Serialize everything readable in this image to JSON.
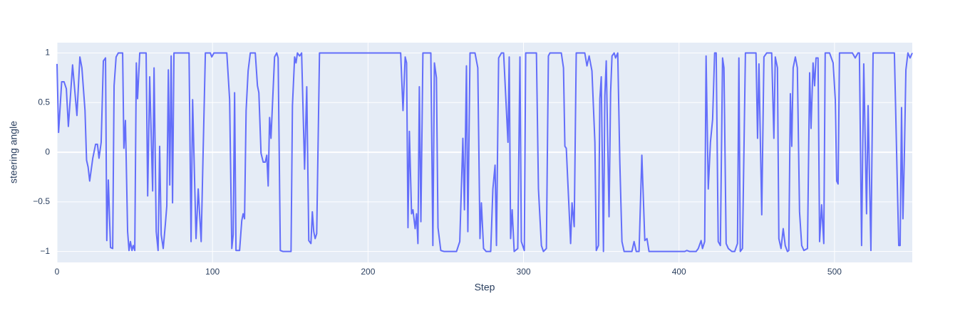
{
  "chart_data": {
    "type": "line",
    "x_label": "Step",
    "y_label": "steering angle",
    "xlim": [
      0,
      550
    ],
    "ylim": [
      -1.11,
      1.104
    ],
    "xticks": [
      0,
      100,
      200,
      300,
      400,
      500
    ],
    "yticks": [
      {
        "value": -1,
        "label": "−1"
      },
      {
        "value": -0.5,
        "label": "−0.5"
      },
      0,
      0.5,
      1
    ],
    "grid": true,
    "background": "#e5ecf6",
    "x": [
      0,
      1,
      3,
      4.5,
      6,
      7.3,
      10,
      12.8,
      14.7,
      16,
      18,
      19,
      20,
      21,
      23,
      24.8,
      26,
      27,
      28.4,
      29.8,
      31.2,
      32,
      33,
      34.4,
      35.8,
      36.7,
      38,
      39.4,
      42.2,
      43,
      44,
      45.4,
      46.3,
      47.2,
      48.2,
      49,
      50,
      51,
      51.8,
      53.2,
      57.3,
      58.3,
      59.6,
      61.5,
      62.4,
      63.8,
      65,
      66,
      67,
      68.3,
      69.7,
      70.6,
      71.6,
      72.5,
      73.4,
      74.3,
      75.2,
      84.9,
      86.2,
      87.2,
      89.4,
      90.8,
      92.7,
      94,
      95.4,
      98.6,
      99.5,
      100.9,
      109.2,
      111,
      112.4,
      113.3,
      114.2,
      115.1,
      117.4,
      118.8,
      119.7,
      120.6,
      121.6,
      122.9,
      124.3,
      127.5,
      128.9,
      129.8,
      131.2,
      132.6,
      133.9,
      134.9,
      135.8,
      136.7,
      137.6,
      139.9,
      141.3,
      142.2,
      143.6,
      145.4,
      150.5,
      151.4,
      152.8,
      153.7,
      154.6,
      156,
      157.3,
      159.2,
      160.6,
      161.9,
      163.3,
      164.2,
      165.1,
      166,
      167,
      168.8,
      221,
      222.5,
      223.9,
      224.8,
      225.7,
      226.6,
      228,
      228.9,
      230.3,
      231.2,
      232.1,
      233,
      234,
      235.3,
      240.4,
      241.7,
      242.7,
      244,
      245,
      246.8,
      249,
      256.9,
      259,
      261,
      262,
      263.3,
      264.2,
      265.6,
      268.8,
      270.6,
      272,
      272.9,
      274.3,
      276,
      278.9,
      280.3,
      281.7,
      282.6,
      284,
      285.8,
      287.2,
      290,
      290.8,
      291.7,
      292.7,
      294,
      296.3,
      297.7,
      298.6,
      300.5,
      301.4,
      308.3,
      309.6,
      311.5,
      312.8,
      314.7,
      316,
      317,
      318.8,
      324.3,
      325.7,
      326.6,
      327.5,
      330.3,
      331.2,
      332.6,
      333.9,
      339.4,
      340.8,
      342.2,
      344,
      345.9,
      346.8,
      348.2,
      349.1,
      350,
      351.4,
      352.3,
      353.2,
      355,
      356,
      356.9,
      358.3,
      359.2,
      360.6,
      361.9,
      363.3,
      364.7,
      369.7,
      371.1,
      372.5,
      374.3,
      376.1,
      378,
      379.4,
      380.7,
      403.7,
      405,
      406.9,
      411,
      412.4,
      414.2,
      415.1,
      416.5,
      417.4,
      418.8,
      420.2,
      421.6,
      422.9,
      423.9,
      425.2,
      426.6,
      428,
      428.9,
      430.3,
      431.7,
      434,
      435.8,
      437.6,
      438.5,
      439.4,
      440.8,
      442.7,
      449.5,
      450.5,
      451.4,
      453.2,
      454.6,
      456.4,
      459.6,
      461,
      461.9,
      463.3,
      464.2,
      465.6,
      467,
      468.3,
      469.7,
      470.6,
      471.6,
      472.5,
      473.4,
      474.8,
      476.1,
      477.5,
      478.9,
      480.3,
      482.6,
      484,
      484.9,
      486.2,
      487.2,
      488.1,
      489.4,
      490.4,
      491.7,
      493.1,
      494,
      496.8,
      499.1,
      500.5,
      501.4,
      502.3,
      503.2,
      511.5,
      513.3,
      515.1,
      516,
      517.4,
      518.8,
      520.6,
      521.6,
      523.4,
      524.8,
      538.5,
      540.4,
      541.3,
      542.2,
      543.1,
      544,
      544.9,
      545.9,
      547.2,
      548.6,
      550
    ],
    "series": [
      {
        "color": "#636efa",
        "values": [
          0.89,
          0.2,
          0.71,
          0.71,
          0.64,
          0.26,
          0.88,
          0.37,
          0.96,
          0.85,
          0.42,
          -0.08,
          -0.15,
          -0.29,
          -0.06,
          0.08,
          0.08,
          -0.06,
          0.1,
          0.92,
          0.95,
          -0.89,
          -0.28,
          -0.96,
          -0.97,
          0.67,
          0.96,
          1,
          1,
          0.04,
          0.32,
          -0.8,
          -0.99,
          -0.9,
          -0.99,
          -0.94,
          -0.99,
          0.9,
          0.54,
          1,
          1,
          -0.44,
          0.76,
          -0.39,
          0.85,
          -0.8,
          -0.99,
          0.06,
          -0.83,
          -0.97,
          -0.72,
          -0.54,
          0.83,
          -0.33,
          0.97,
          -0.51,
          1,
          1,
          -0.9,
          0.53,
          -0.87,
          -0.37,
          -0.9,
          0.03,
          1,
          1,
          0.96,
          1,
          1,
          0.53,
          -0.97,
          -0.83,
          0.6,
          -0.99,
          -0.99,
          -0.69,
          -0.62,
          -0.67,
          0.42,
          0.82,
          1,
          1,
          0.67,
          0.6,
          -0.01,
          -0.1,
          -0.1,
          -0.03,
          -0.34,
          0.35,
          0.14,
          0.96,
          1,
          0.95,
          -0.99,
          -1,
          -1,
          0.47,
          0.96,
          0.9,
          1,
          0.97,
          1,
          -0.17,
          0.66,
          -0.89,
          -0.92,
          -0.6,
          -0.8,
          -0.87,
          -0.82,
          1,
          1,
          0.42,
          0.96,
          0.9,
          -0.76,
          0.21,
          -0.62,
          -0.58,
          -0.77,
          -0.62,
          -0.92,
          0.66,
          -0.7,
          1,
          1,
          -0.94,
          0.9,
          0.75,
          -0.76,
          -0.99,
          -1,
          -1,
          -0.9,
          0.14,
          -0.58,
          0.87,
          -0.8,
          1,
          1,
          0.85,
          -0.87,
          -0.51,
          -0.97,
          -1,
          -1,
          -0.37,
          -0.13,
          -0.94,
          0.95,
          1,
          1,
          0.1,
          0.96,
          -0.87,
          -0.58,
          -1,
          -0.97,
          0.96,
          -0.9,
          -0.99,
          1,
          1,
          -0.37,
          -0.94,
          -1,
          -0.97,
          0.97,
          1,
          1,
          1,
          0.85,
          0.06,
          0.04,
          -0.92,
          -0.51,
          -0.75,
          1,
          1,
          0.87,
          0.97,
          0.82,
          0.1,
          -0.99,
          -0.94,
          0.54,
          0.76,
          -1,
          0.57,
          0.92,
          -0.65,
          0.6,
          0.97,
          1,
          0.95,
          1,
          -0.08,
          -0.9,
          -1,
          -1,
          -0.9,
          -1,
          -1,
          -0.03,
          -0.89,
          -0.87,
          -1,
          -1,
          -0.99,
          -1,
          -1,
          -0.97,
          -0.89,
          -0.97,
          -0.9,
          0.97,
          -0.37,
          0.1,
          0.33,
          1,
          1,
          -0.9,
          -0.94,
          0.95,
          0.85,
          -0.92,
          -0.97,
          -1,
          -1,
          -0.92,
          0.95,
          -1,
          -0.97,
          1,
          1,
          0.14,
          0.89,
          -0.63,
          0.96,
          1,
          1,
          0.14,
          0.96,
          0.85,
          -0.87,
          -0.97,
          -0.77,
          -0.94,
          -1,
          -0.99,
          0.59,
          0.06,
          0.85,
          0.96,
          0.85,
          -0.6,
          -0.94,
          -0.99,
          -0.97,
          0.8,
          0.24,
          0.9,
          0.67,
          0.95,
          0.95,
          -0.9,
          -0.53,
          -0.92,
          1,
          1,
          0.9,
          0.53,
          -0.29,
          -0.32,
          1,
          1,
          0.95,
          1,
          1,
          -0.94,
          0.89,
          -0.62,
          0.47,
          -0.99,
          1,
          1,
          -0.33,
          -0.94,
          -0.94,
          0.45,
          -0.67,
          -0.04,
          0.83,
          1,
          0.95,
          1
        ]
      }
    ]
  }
}
